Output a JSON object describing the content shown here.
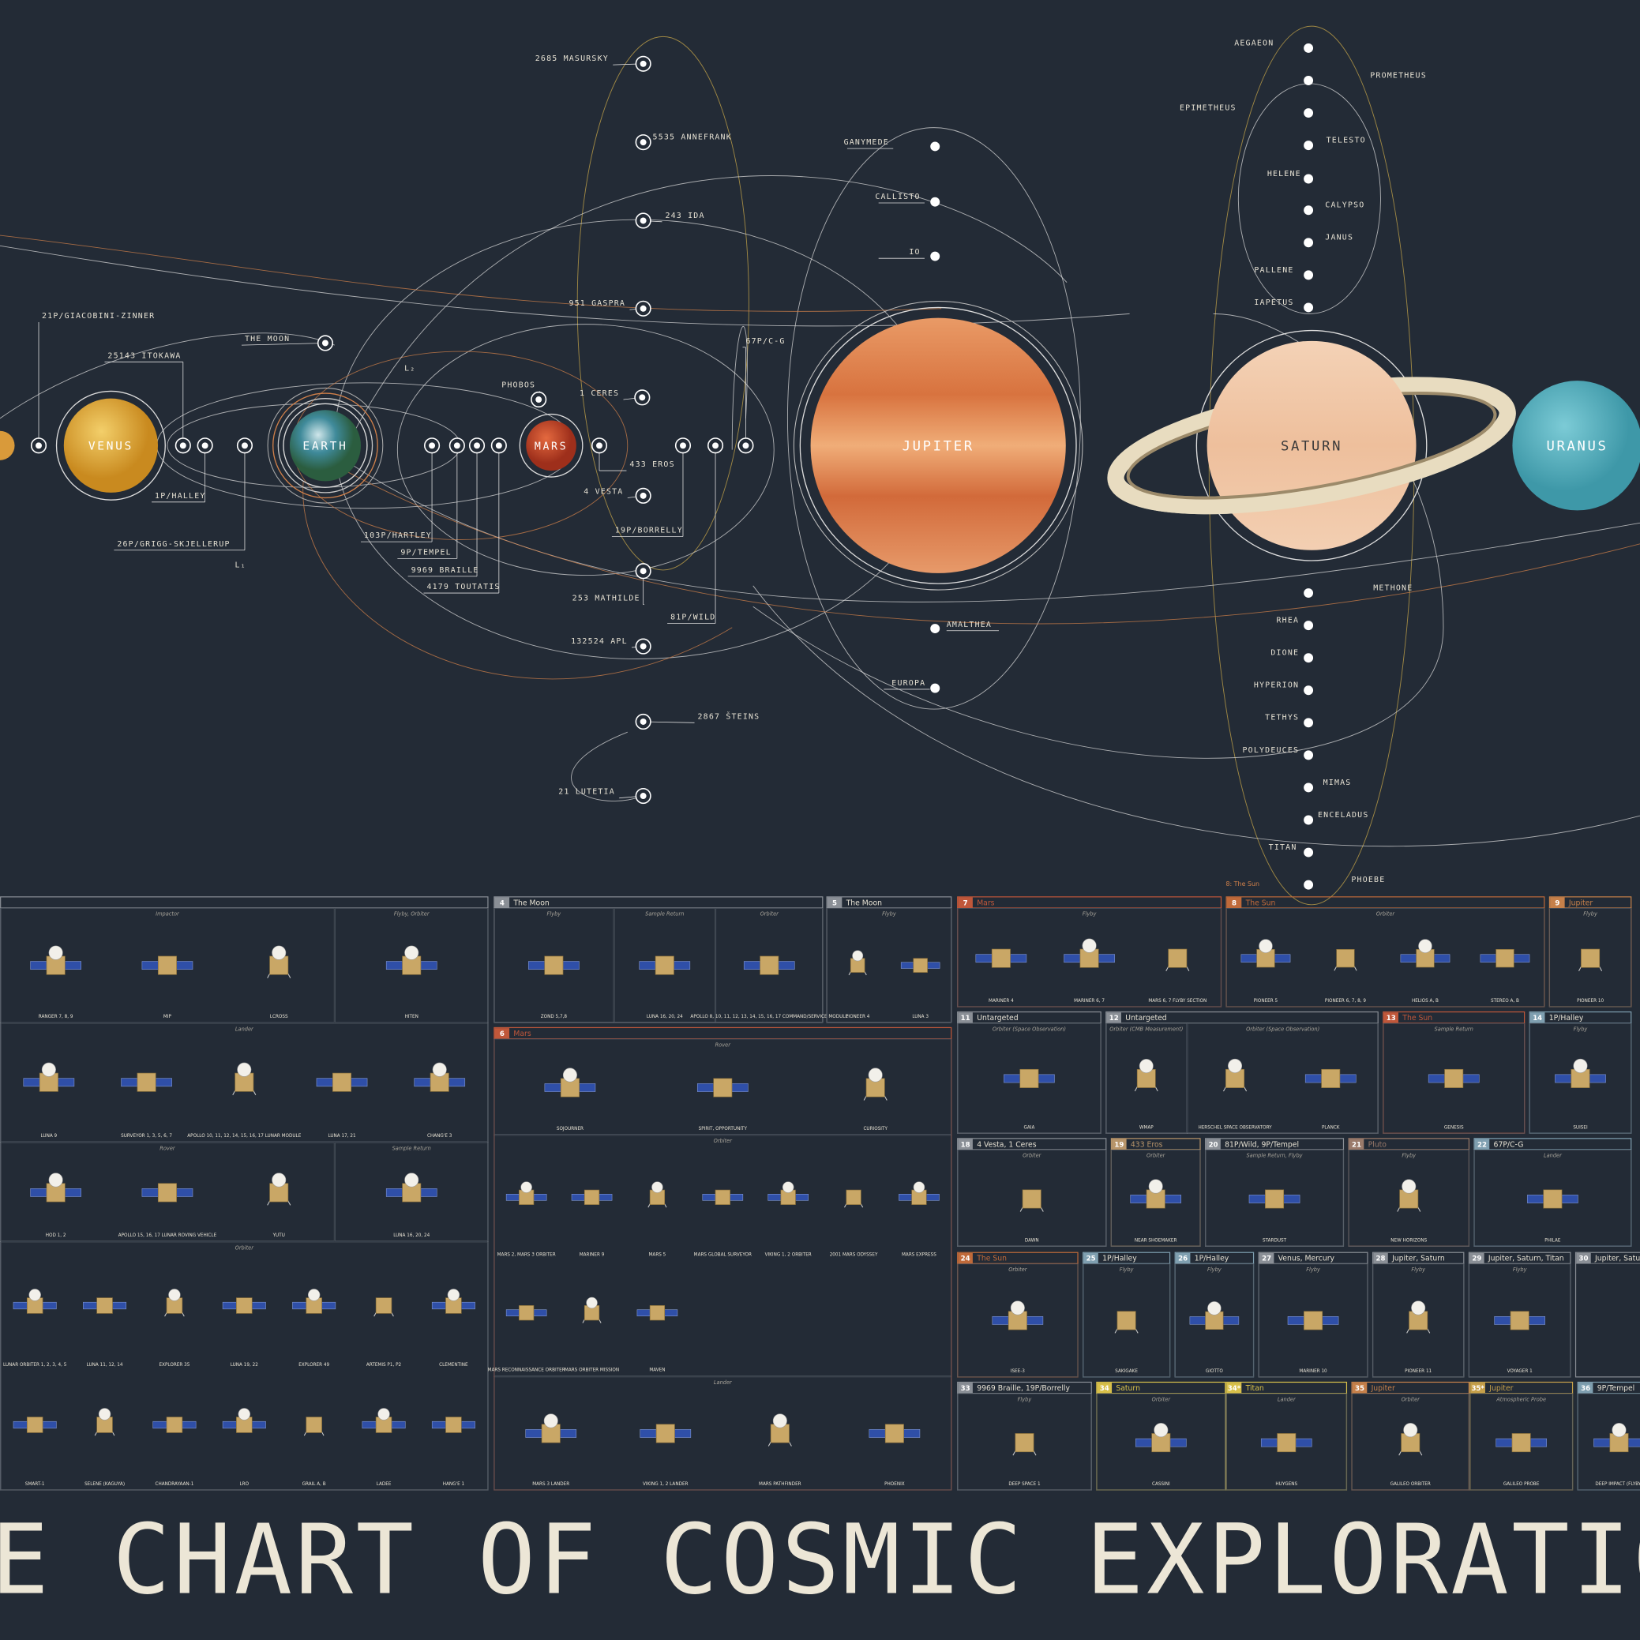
{
  "title": "THE CHART OF COSMIC EXPLORATION",
  "planets": [
    "VENUS",
    "EARTH",
    "MARS",
    "JUPITER",
    "SATURN",
    "URANUS"
  ],
  "small_bodies": [
    "2685 MASURSKY",
    "5535 ANNEFRANK",
    "243 IDA",
    "951 GASPRA",
    "21P/GIACOBINI-ZINNER",
    "25143 ITOKAWA",
    "THE MOON",
    "PHOBOS",
    "1 CERES",
    "67P/C-G",
    "433 EROS",
    "4 VESTA",
    "19P/BORRELLY",
    "1P/HALLEY",
    "26P/GRIGG-SKJELLERUP",
    "103P/HARTLEY",
    "9P/TEMPEL",
    "9969 BRAILLE",
    "4179 TOUTATIS",
    "253 MATHILDE",
    "81P/WILD",
    "132524 APL",
    "2867 ŠTEINS",
    "21 LUTETIA"
  ],
  "lagrange_points": [
    "L₁",
    "L₂"
  ],
  "jupiter_moons": [
    "GANYMEDE",
    "CALLISTO",
    "IO",
    "AMALTHEA",
    "EUROPA"
  ],
  "saturn_moons": [
    "AEGAEON",
    "PROMETHEUS",
    "EPIMETHEUS",
    "TELESTO",
    "HELENE",
    "CALYPSO",
    "JANUS",
    "PALLENE",
    "IAPETUS",
    "METHONE",
    "RHEA",
    "DIONE",
    "HYPERION",
    "TETHYS",
    "POLYDEUCES",
    "MIMAS",
    "ENCELADUS",
    "TITAN",
    "PHOEBE"
  ],
  "sun_note": "8: The Sun",
  "panels": [
    {
      "groups": [
        {
          "label": "Impactor",
          "crafts": [
            "RANGER 7, 8, 9",
            "MIP",
            "LCROSS"
          ]
        },
        {
          "label": "Flyby, Orbiter",
          "crafts": [
            "HITEN"
          ]
        },
        {
          "label": "Lander",
          "crafts": [
            "LUNA 9",
            "SURVEYOR 1, 3, 5, 6, 7",
            "APOLLO 10, 11, 12, 14, 15, 16, 17 LUNAR MODULE",
            "LUNA 17, 21",
            "CHANG'E 3"
          ]
        },
        {
          "label": "Rover",
          "crafts": [
            "HOD 1, 2",
            "APOLLO 15, 16, 17 LUNAR ROVING VEHICLE",
            "YUTU"
          ]
        },
        {
          "label": "Sample Return",
          "crafts": [
            "LUNA 16, 20, 24"
          ]
        },
        {
          "label": "Orbiter",
          "crafts": [
            "LUNAR ORBITER 1, 2, 3, 4, 5",
            "LUNA 11, 12, 14",
            "EXPLORER 35",
            "LUNA 19, 22",
            "EXPLORER 49",
            "ARTEMIS P1, P2",
            "CLEMENTINE",
            "SMART-1",
            "SELENE (KAGUYA)",
            "CHANDRAYAAN-1",
            "LRO",
            "GRAIL A, B",
            "LADEE",
            "HANG'E 1"
          ]
        }
      ]
    },
    {
      "number": "4",
      "target": "The Moon",
      "groups": [
        {
          "label": "Flyby",
          "crafts": [
            "ZOND 5,7,8"
          ]
        },
        {
          "label": "Sample Return",
          "crafts": [
            "LUNA 16, 20, 24"
          ]
        },
        {
          "label": "Orbiter",
          "crafts": [
            "APOLLO 8, 10, 11, 12, 13, 14, 15, 16, 17 COMMAND/SERVICE MODULE"
          ]
        }
      ]
    },
    {
      "number": "5",
      "target": "The Moon",
      "groups": [
        {
          "label": "Flyby",
          "crafts": [
            "PIONEER 4",
            "LUNA 3"
          ]
        }
      ]
    },
    {
      "number": "7",
      "target": "Mars",
      "groups": [
        {
          "label": "Flyby",
          "crafts": [
            "MARINER 4",
            "MARINER 6, 7",
            "MARS 6, 7 FLYBY SECTION"
          ]
        }
      ]
    },
    {
      "number": "8",
      "target": "The Sun",
      "groups": [
        {
          "label": "Orbiter",
          "crafts": [
            "PIONEER 5",
            "PIONEER 6, 7, 8, 9",
            "HELIOS A, B",
            "STEREO A, B"
          ]
        }
      ]
    },
    {
      "number": "9",
      "target": "Jupiter",
      "groups": [
        {
          "label": "Flyby",
          "crafts": [
            "PIONEER 10"
          ]
        }
      ]
    },
    {
      "number": "6",
      "target": "Mars",
      "groups": [
        {
          "label": "Rover",
          "crafts": [
            "SOJOURNER",
            "SPIRIT, OPPORTUNITY",
            "CURIOSITY"
          ]
        },
        {
          "label": "Orbiter",
          "crafts": [
            "MARS 2, MARS 3 ORBITER",
            "MARINER 9",
            "MARS 5",
            "MARS GLOBAL SURVEYOR",
            "VIKING 1, 2 ORBITER",
            "2001 MARS ODYSSEY",
            "MARS EXPRESS",
            "MARS RECONNAISSANCE ORBITER",
            "MARS ORBITER MISSION",
            "MAVEN"
          ]
        },
        {
          "label": "Lander",
          "crafts": [
            "MARS 3 LANDER",
            "VIKING 1, 2 LANDER",
            "MARS PATHFINDER",
            "PHOENIX"
          ]
        }
      ]
    },
    {
      "number": "11",
      "target": "Untargeted",
      "groups": [
        {
          "label": "Orbiter (Space Observation)",
          "crafts": [
            "GAIA"
          ]
        }
      ]
    },
    {
      "number": "12",
      "target": "Untargeted",
      "groups": [
        {
          "label": "Orbiter (CMB Measurement)",
          "crafts": [
            "WMAP"
          ]
        },
        {
          "label": "Orbiter (Space Observation)",
          "crafts": [
            "HERSCHEL SPACE OBSERVATORY",
            "PLANCK"
          ]
        }
      ]
    },
    {
      "number": "13",
      "target": "The Sun",
      "groups": [
        {
          "label": "Sample Return",
          "crafts": [
            "GENESIS"
          ]
        }
      ]
    },
    {
      "number": "14",
      "target": "1P/Halley",
      "groups": [
        {
          "label": "Flyby",
          "crafts": [
            "SUISEI"
          ]
        }
      ]
    },
    {
      "number": "18",
      "target": "4 Vesta, 1 Ceres",
      "groups": [
        {
          "label": "Orbiter",
          "crafts": [
            "DAWN"
          ]
        }
      ]
    },
    {
      "number": "19",
      "target": "433 Eros",
      "groups": [
        {
          "label": "Orbiter",
          "crafts": [
            "NEAR SHOEMAKER"
          ]
        }
      ]
    },
    {
      "number": "20",
      "target": "81P/Wild, 9P/Tempel",
      "groups": [
        {
          "label": "Sample Return, Flyby",
          "crafts": [
            "STARDUST"
          ]
        }
      ]
    },
    {
      "number": "21",
      "target": "Pluto",
      "groups": [
        {
          "label": "Flyby",
          "crafts": [
            "NEW HORIZONS"
          ]
        }
      ]
    },
    {
      "number": "22",
      "target": "67P/C-G",
      "groups": [
        {
          "label": "Lander",
          "crafts": [
            "PHILAE"
          ]
        }
      ]
    },
    {
      "number": "24",
      "target": "The Sun",
      "groups": [
        {
          "label": "Orbiter",
          "crafts": [
            "ISEE-3"
          ]
        }
      ]
    },
    {
      "number": "25",
      "target": "1P/Halley",
      "groups": [
        {
          "label": "Flyby",
          "crafts": [
            "SAKIGAKE"
          ]
        }
      ]
    },
    {
      "number": "26",
      "target": "1P/Halley",
      "groups": [
        {
          "label": "Flyby",
          "crafts": [
            "GIOTTO"
          ]
        }
      ]
    },
    {
      "number": "27",
      "target": "Venus, Mercury",
      "groups": [
        {
          "label": "Flyby",
          "crafts": [
            "MARINER 10"
          ]
        }
      ]
    },
    {
      "number": "28",
      "target": "Jupiter, Saturn",
      "groups": [
        {
          "label": "Flyby",
          "crafts": [
            "PIONEER 11"
          ]
        }
      ]
    },
    {
      "number": "29",
      "target": "Jupiter, Saturn, Titan",
      "groups": [
        {
          "label": "Flyby",
          "crafts": [
            "VOYAGER 1"
          ]
        }
      ]
    },
    {
      "number": "30",
      "target": "Jupiter, Saturn",
      "groups": []
    },
    {
      "number": "33",
      "target": "9969 Braille, 19P/Borrelly",
      "groups": [
        {
          "label": "Flyby",
          "crafts": [
            "DEEP SPACE 1"
          ]
        }
      ]
    },
    {
      "number": "34",
      "target": "Saturn",
      "groups": [
        {
          "label": "Orbiter",
          "crafts": [
            "CASSINI"
          ]
        }
      ]
    },
    {
      "number": "34*",
      "target": "Titan",
      "groups": [
        {
          "label": "Lander",
          "crafts": [
            "HUYGENS"
          ]
        }
      ]
    },
    {
      "number": "35",
      "target": "Jupiter",
      "groups": [
        {
          "label": "Orbiter",
          "crafts": [
            "GALILEO ORBITER"
          ]
        }
      ]
    },
    {
      "number": "35*",
      "target": "Jupiter",
      "groups": [
        {
          "label": "Atmospheric Probe",
          "crafts": [
            "GALILEO PROBE"
          ]
        }
      ]
    },
    {
      "number": "36",
      "target": "9P/Tempel",
      "groups": [
        {
          "crafts": [
            "DEEP IMPACT (FLYBY)"
          ]
        }
      ]
    }
  ]
}
